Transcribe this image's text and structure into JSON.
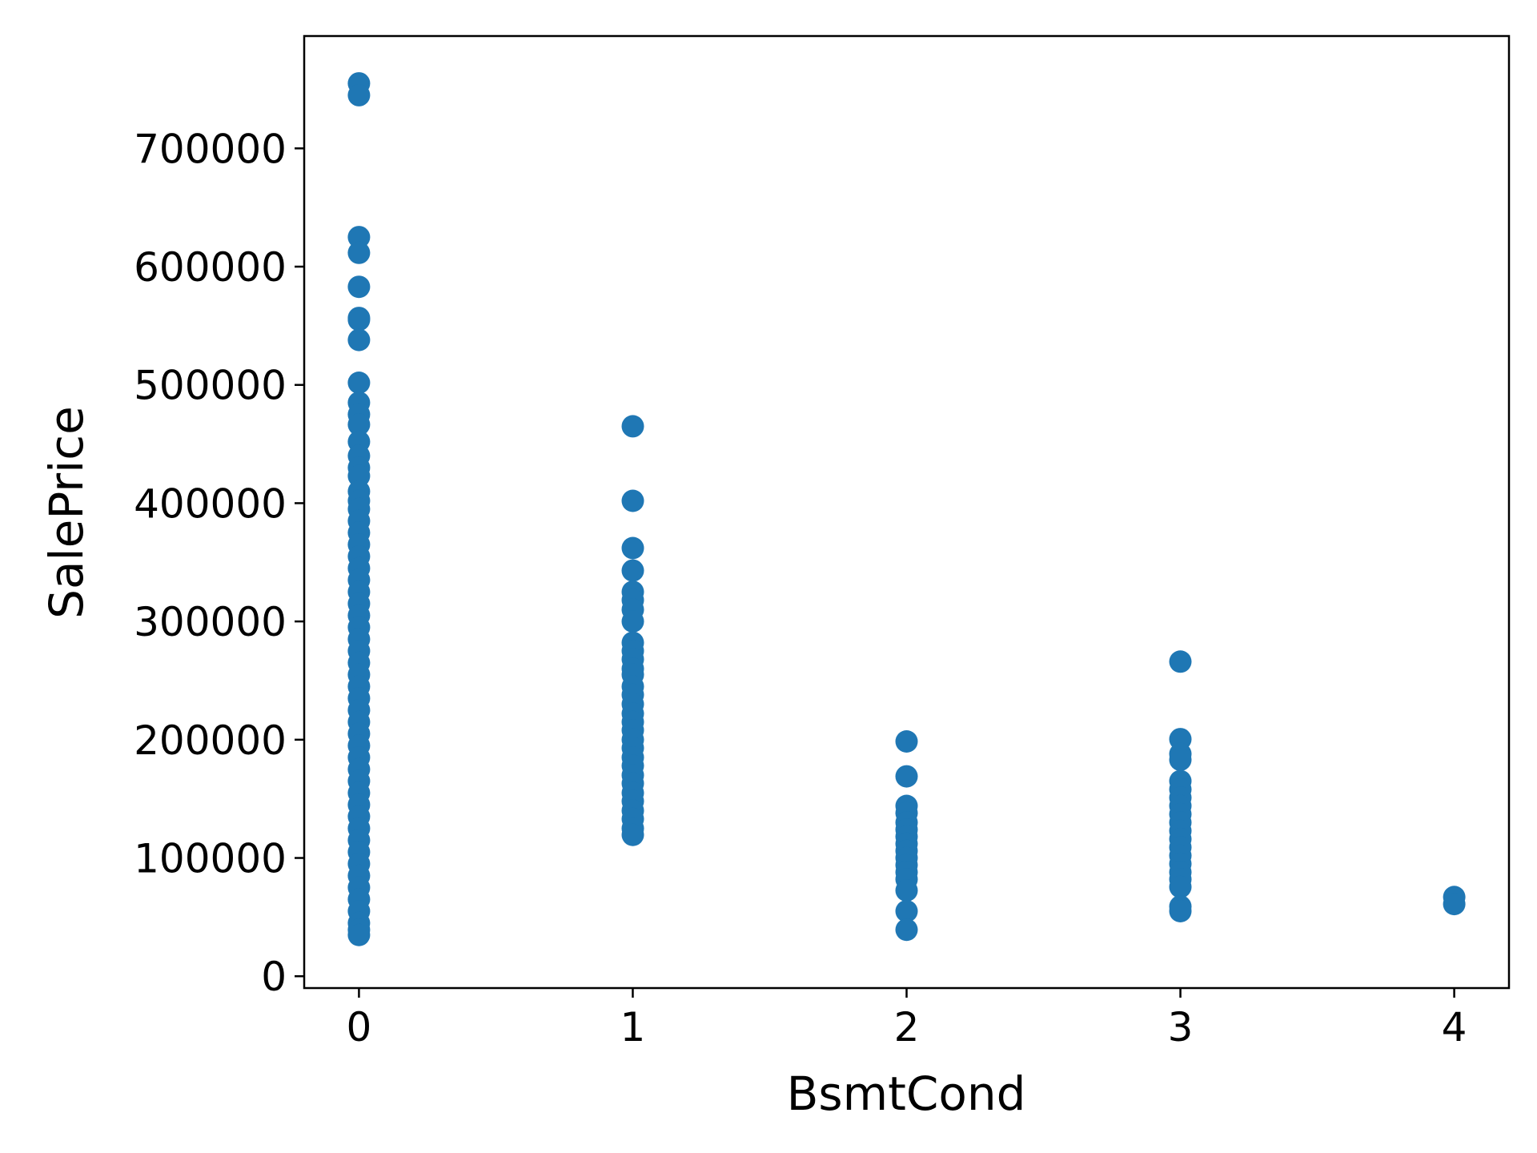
{
  "chart_data": {
    "type": "scatter",
    "title": "",
    "xlabel": "BsmtCond",
    "ylabel": "SalePrice",
    "xlim": [
      -0.2,
      4.2
    ],
    "ylim": [
      -10000,
      795000
    ],
    "grid": false,
    "legend": "none",
    "marker_color": "#1f77b4",
    "xticks": [
      "0",
      "1",
      "2",
      "3",
      "4"
    ],
    "yticks": [
      "0",
      "100000",
      "200000",
      "300000",
      "400000",
      "500000",
      "600000",
      "700000"
    ],
    "series": [
      {
        "name": "",
        "points": [
          [
            0,
            755000
          ],
          [
            0,
            745000
          ],
          [
            0,
            625000
          ],
          [
            0,
            611657
          ],
          [
            0,
            582933
          ],
          [
            0,
            556581
          ],
          [
            0,
            555000
          ],
          [
            0,
            538000
          ],
          [
            0,
            501837
          ],
          [
            0,
            485000
          ],
          [
            0,
            475000
          ],
          [
            0,
            466500
          ],
          [
            0,
            451950
          ],
          [
            0,
            440000
          ],
          [
            0,
            430000
          ],
          [
            0,
            423000
          ],
          [
            0,
            410000
          ],
          [
            0,
            402000
          ],
          [
            0,
            395000
          ],
          [
            0,
            385000
          ],
          [
            0,
            375000
          ],
          [
            0,
            365000
          ],
          [
            0,
            355000
          ],
          [
            0,
            345000
          ],
          [
            0,
            335000
          ],
          [
            0,
            325000
          ],
          [
            0,
            315000
          ],
          [
            0,
            305000
          ],
          [
            0,
            295000
          ],
          [
            0,
            285000
          ],
          [
            0,
            275000
          ],
          [
            0,
            265000
          ],
          [
            0,
            255000
          ],
          [
            0,
            245000
          ],
          [
            0,
            235000
          ],
          [
            0,
            225000
          ],
          [
            0,
            215000
          ],
          [
            0,
            205000
          ],
          [
            0,
            195000
          ],
          [
            0,
            185000
          ],
          [
            0,
            175000
          ],
          [
            0,
            165000
          ],
          [
            0,
            155000
          ],
          [
            0,
            145000
          ],
          [
            0,
            135000
          ],
          [
            0,
            125000
          ],
          [
            0,
            115000
          ],
          [
            0,
            105000
          ],
          [
            0,
            95000
          ],
          [
            0,
            85000
          ],
          [
            0,
            75000
          ],
          [
            0,
            65000
          ],
          [
            0,
            55000
          ],
          [
            0,
            45000
          ],
          [
            0,
            39300
          ],
          [
            0,
            34900
          ],
          [
            1,
            465000
          ],
          [
            1,
            402000
          ],
          [
            1,
            362000
          ],
          [
            1,
            343000
          ],
          [
            1,
            325000
          ],
          [
            1,
            318000
          ],
          [
            1,
            310000
          ],
          [
            1,
            300000
          ],
          [
            1,
            282000
          ],
          [
            1,
            275000
          ],
          [
            1,
            268000
          ],
          [
            1,
            260000
          ],
          [
            1,
            255000
          ],
          [
            1,
            245000
          ],
          [
            1,
            238000
          ],
          [
            1,
            230000
          ],
          [
            1,
            222000
          ],
          [
            1,
            215000
          ],
          [
            1,
            208000
          ],
          [
            1,
            200000
          ],
          [
            1,
            193000
          ],
          [
            1,
            185000
          ],
          [
            1,
            178000
          ],
          [
            1,
            170000
          ],
          [
            1,
            163000
          ],
          [
            1,
            155000
          ],
          [
            1,
            148000
          ],
          [
            1,
            140000
          ],
          [
            1,
            133000
          ],
          [
            1,
            125000
          ],
          [
            1,
            119500
          ],
          [
            2,
            198500
          ],
          [
            2,
            169000
          ],
          [
            2,
            144000
          ],
          [
            2,
            138000
          ],
          [
            2,
            130000
          ],
          [
            2,
            124000
          ],
          [
            2,
            118000
          ],
          [
            2,
            112000
          ],
          [
            2,
            106000
          ],
          [
            2,
            100000
          ],
          [
            2,
            94000
          ],
          [
            2,
            88000
          ],
          [
            2,
            82000
          ],
          [
            2,
            72500
          ],
          [
            2,
            55000
          ],
          [
            2,
            39300
          ],
          [
            3,
            266000
          ],
          [
            3,
            200500
          ],
          [
            3,
            188000
          ],
          [
            3,
            183000
          ],
          [
            3,
            165000
          ],
          [
            3,
            158000
          ],
          [
            3,
            151000
          ],
          [
            3,
            144000
          ],
          [
            3,
            137000
          ],
          [
            3,
            130000
          ],
          [
            3,
            123000
          ],
          [
            3,
            116000
          ],
          [
            3,
            109000
          ],
          [
            3,
            102000
          ],
          [
            3,
            95000
          ],
          [
            3,
            88000
          ],
          [
            3,
            82000
          ],
          [
            3,
            75500
          ],
          [
            3,
            59000
          ],
          [
            3,
            55000
          ],
          [
            4,
            67000
          ],
          [
            4,
            61000
          ]
        ]
      }
    ]
  }
}
